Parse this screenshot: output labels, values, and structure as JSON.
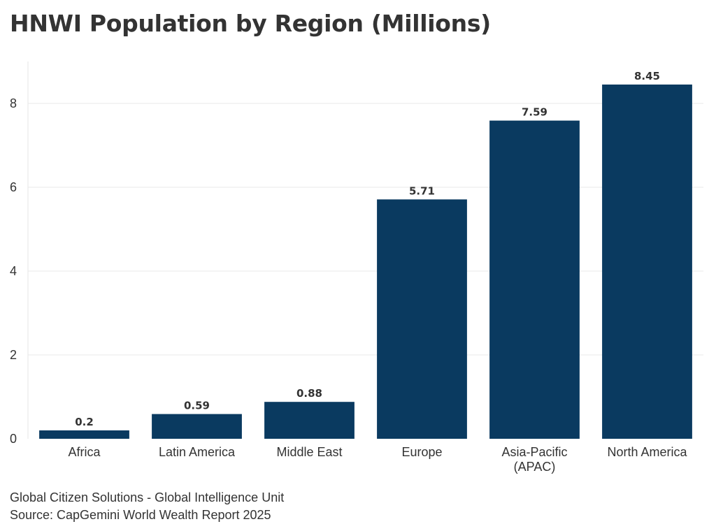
{
  "chart_data": {
    "type": "bar",
    "title": "HNWI Population by Region (Millions)",
    "categories": [
      "Africa",
      "Latin America",
      "Middle East",
      "Europe",
      "Asia-Pacific\n(APAC)",
      "North America"
    ],
    "values": [
      0.2,
      0.59,
      0.88,
      5.71,
      7.59,
      8.45
    ],
    "data_labels": [
      "0.2",
      "0.59",
      "0.88",
      "5.71",
      "7.59",
      "8.45"
    ],
    "xlabel": "",
    "ylabel": "",
    "ylim": [
      0,
      9
    ],
    "yticks": [
      0,
      2,
      4,
      6,
      8
    ],
    "grid": true,
    "bar_color": "#0a3a60"
  },
  "footer": {
    "line1": "Global Citizen Solutions - Global Intelligence Unit",
    "line2": "Source: CapGemini World Wealth Report 2025"
  }
}
